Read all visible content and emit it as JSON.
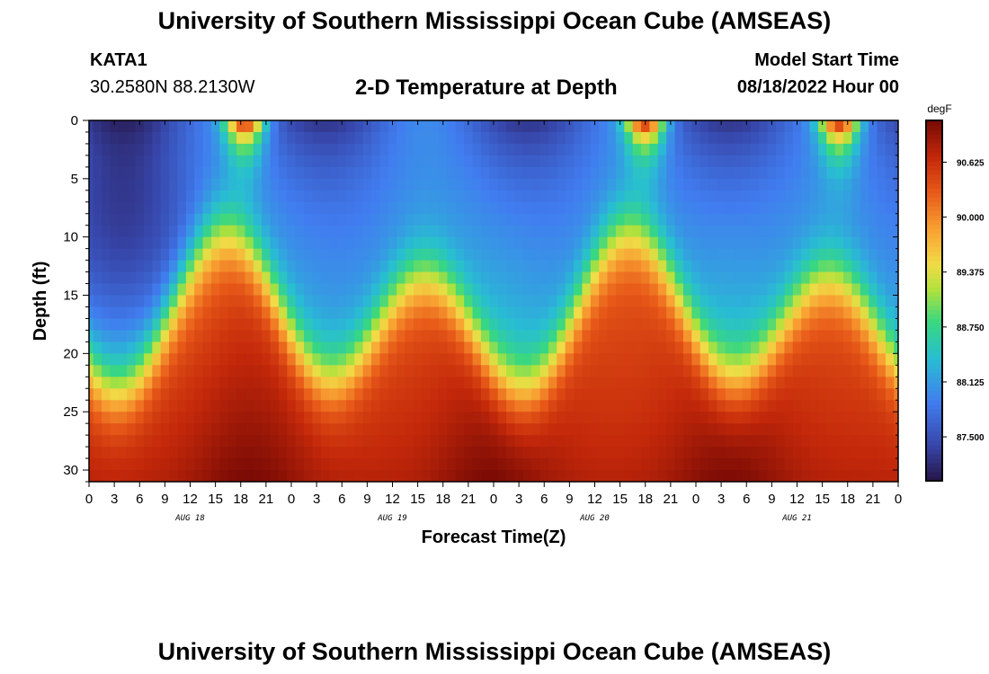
{
  "header": {
    "title": "University of Southern Mississippi Ocean Cube (AMSEAS)",
    "station": "KATA1",
    "coords": "30.2580N  88.2130W",
    "subtitle": "2-D Temperature at Depth",
    "model_label": "Model Start Time",
    "model_time": "08/18/2022 Hour 00"
  },
  "footer": {
    "title": "University of Southern Mississippi Ocean Cube (AMSEAS)"
  },
  "chart_data": {
    "type": "heatmap",
    "title": "2-D Temperature at Depth",
    "xlabel": "Forecast Time(Z)",
    "ylabel": "Depth (ft)",
    "x_hours_range": [
      0,
      96
    ],
    "x_tick_labels": [
      "0",
      "3",
      "6",
      "9",
      "12",
      "15",
      "18",
      "21",
      "0",
      "3",
      "6",
      "9",
      "12",
      "15",
      "18",
      "21",
      "0",
      "3",
      "6",
      "9",
      "12",
      "15",
      "18",
      "21",
      "0",
      "3",
      "6",
      "9",
      "12",
      "15",
      "18",
      "21",
      "0"
    ],
    "date_labels": [
      {
        "label": "AUG 18",
        "hour": 12
      },
      {
        "label": "AUG 19",
        "hour": 36
      },
      {
        "label": "AUG 20",
        "hour": 60
      },
      {
        "label": "AUG 21",
        "hour": 84
      }
    ],
    "y_range": [
      0,
      31
    ],
    "y_ticks": [
      0,
      5,
      10,
      15,
      20,
      25,
      30
    ],
    "colorbar": {
      "unit": "degF",
      "min": 87.0,
      "max": 91.1,
      "ticks": [
        87.5,
        88.125,
        88.75,
        89.375,
        90.0,
        90.625
      ],
      "tick_labels": [
        "87.500",
        "88.125",
        "88.750",
        "89.375",
        "90.000",
        "90.625"
      ]
    },
    "surface_warm_peaks_hours": [
      18.5,
      66,
      89
    ],
    "deep_warm_peaks_hours": [
      19,
      48,
      76
    ]
  }
}
